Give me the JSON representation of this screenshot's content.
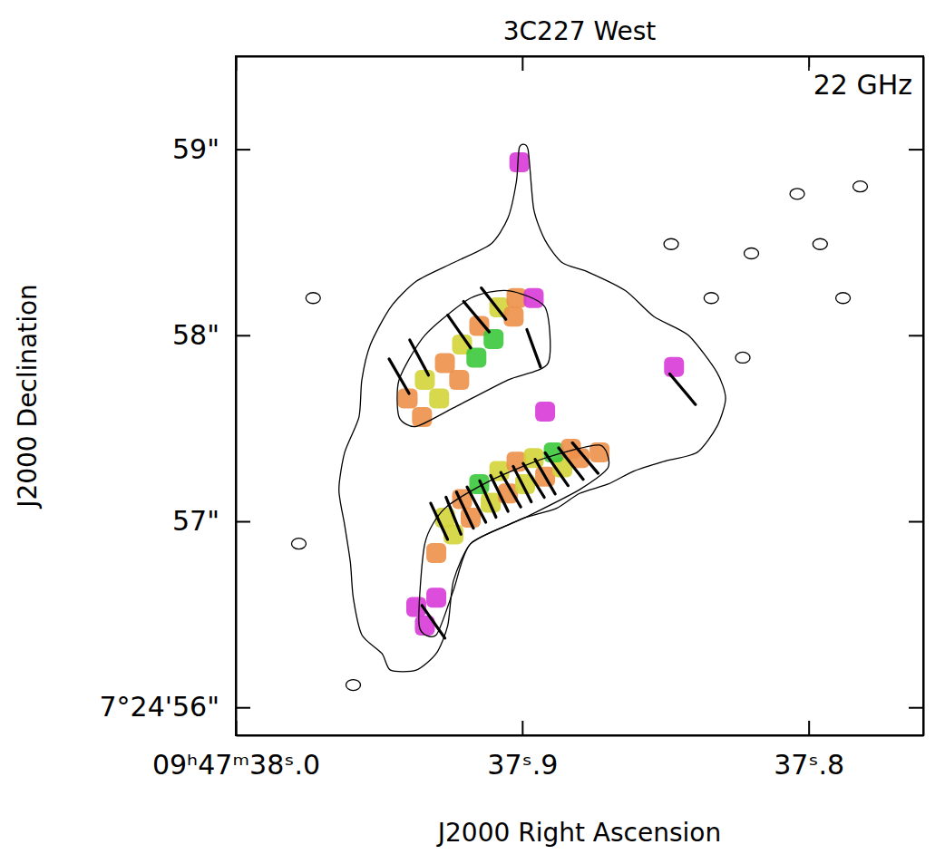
{
  "chart_data": {
    "type": "contour",
    "title": "3C227 West",
    "annotation": "22 GHz",
    "x_label": "J2000 Right Ascension",
    "y_label": "J2000 Declination",
    "xlim": [
      38.0,
      37.76
    ],
    "ylim": [
      55.85,
      59.5
    ],
    "xticks": [
      {
        "value": 38.0,
        "label": "09ʰ47ᵐ38ˢ.0"
      },
      {
        "value": 37.9,
        "label": "37ˢ.9"
      },
      {
        "value": 37.8,
        "label": "37ˢ.8"
      }
    ],
    "yticks": [
      {
        "value": 59,
        "label": "59\""
      },
      {
        "value": 58,
        "label": "58\""
      },
      {
        "value": 57,
        "label": "57\""
      },
      {
        "value": 56,
        "label": "7°24'56\""
      }
    ],
    "contours": [
      {
        "x": [
          37.901,
          37.898,
          37.896,
          37.892,
          37.886,
          37.877,
          37.864,
          37.854,
          37.842,
          37.832,
          37.829,
          37.832,
          37.839,
          37.851,
          37.861,
          37.87,
          37.88,
          37.888,
          37.899,
          37.905,
          37.918,
          37.924,
          37.926,
          37.93,
          37.937,
          37.946,
          37.949,
          37.956,
          37.959,
          37.96,
          37.962,
          37.964,
          37.962,
          37.957,
          37.956,
          37.953,
          37.946,
          37.937,
          37.924,
          37.911,
          37.905,
          37.902
        ],
        "y": [
          59.01,
          59.0,
          58.68,
          58.51,
          58.39,
          58.34,
          58.24,
          58.1,
          58.0,
          57.8,
          57.66,
          57.51,
          57.37,
          57.32,
          57.27,
          57.2,
          57.15,
          57.07,
          57.02,
          56.98,
          56.88,
          56.68,
          56.44,
          56.29,
          56.2,
          56.2,
          56.29,
          56.39,
          56.59,
          56.78,
          56.98,
          57.17,
          57.37,
          57.56,
          57.76,
          57.95,
          58.15,
          58.29,
          58.39,
          58.49,
          58.63,
          58.83
        ]
      },
      {
        "x": [
          37.943,
          37.934,
          37.918,
          37.905,
          37.892,
          37.891,
          37.905,
          37.924,
          37.937,
          37.943
        ],
        "y": [
          57.76,
          58.0,
          58.2,
          58.24,
          58.15,
          57.85,
          57.76,
          57.61,
          57.51,
          57.56
        ]
      },
      {
        "x": [
          37.934,
          37.927,
          37.911,
          37.892,
          37.873,
          37.87,
          37.88,
          37.899,
          37.918,
          37.924,
          37.93,
          37.936
        ],
        "y": [
          56.88,
          57.07,
          57.22,
          57.34,
          57.41,
          57.29,
          57.17,
          57.02,
          56.88,
          56.63,
          56.39,
          56.44
        ]
      }
    ],
    "contour_islands": {
      "x": [
        37.848,
        37.834,
        37.82,
        37.804,
        37.796,
        37.788,
        37.823,
        37.973,
        37.978,
        37.959,
        37.782
      ],
      "y": [
        58.49,
        58.2,
        58.44,
        58.76,
        58.49,
        58.2,
        57.88,
        58.2,
        56.88,
        56.12,
        58.8
      ]
    },
    "pol_intensity": {
      "x": [
        37.94,
        37.934,
        37.927,
        37.921,
        37.915,
        37.908,
        37.902,
        37.896,
        37.935,
        37.929,
        37.922,
        37.916,
        37.91,
        37.903,
        37.93,
        37.924,
        37.918,
        37.911,
        37.905,
        37.899,
        37.892,
        37.886,
        37.88,
        37.873,
        37.927,
        37.921,
        37.915,
        37.908,
        37.902,
        37.896,
        37.889,
        37.883,
        37.93,
        37.934,
        37.937,
        37.901,
        37.892,
        37.847
      ],
      "y": [
        57.66,
        57.76,
        57.85,
        57.95,
        58.05,
        58.15,
        58.2,
        58.2,
        57.56,
        57.66,
        57.76,
        57.88,
        57.98,
        58.1,
        56.83,
        56.93,
        57.02,
        57.1,
        57.15,
        57.2,
        57.24,
        57.29,
        57.34,
        57.37,
        57.02,
        57.12,
        57.2,
        57.27,
        57.32,
        57.34,
        57.37,
        57.39,
        56.59,
        56.44,
        56.54,
        58.93,
        57.59,
        57.83
      ],
      "level": [
        2,
        3,
        2,
        3,
        2,
        3,
        2,
        1,
        2,
        3,
        2,
        4,
        4,
        2,
        2,
        3,
        2,
        3,
        2,
        3,
        2,
        3,
        2,
        2,
        3,
        2,
        4,
        3,
        2,
        3,
        4,
        2,
        1,
        1,
        1,
        1,
        1,
        1
      ]
    },
    "vectors": {
      "x": [
        37.929,
        37.924,
        37.92,
        37.916,
        37.912,
        37.908,
        37.904,
        37.9,
        37.896,
        37.892,
        37.888,
        37.883,
        37.878,
        37.943,
        37.936,
        37.922,
        37.916,
        37.91,
        37.896,
        37.931,
        37.844
      ],
      "y": [
        57.0,
        57.03,
        57.06,
        57.09,
        57.12,
        57.15,
        57.17,
        57.2,
        57.22,
        57.24,
        57.28,
        57.31,
        57.34,
        57.78,
        57.88,
        58.02,
        58.1,
        58.17,
        57.93,
        56.46,
        57.71
      ],
      "angle": [
        25,
        22,
        25,
        28,
        24,
        26,
        30,
        27,
        32,
        30,
        35,
        38,
        40,
        30,
        28,
        35,
        40,
        38,
        20,
        35,
        40
      ]
    }
  }
}
